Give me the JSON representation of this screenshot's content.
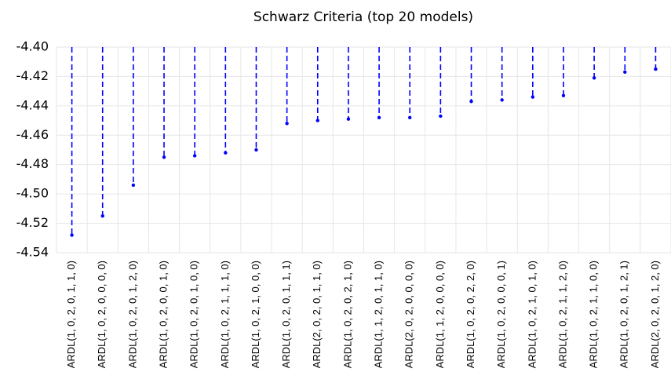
{
  "chart_data": {
    "type": "dropline",
    "title": "Schwarz Criteria (top 20 models)",
    "categories": [
      "ARDL(1, 0, 2, 0, 1, 1, 0)",
      "ARDL(1, 0, 2, 0, 0, 0, 0)",
      "ARDL(1, 0, 2, 0, 1, 2, 0)",
      "ARDL(1, 0, 2, 0, 0, 1, 0)",
      "ARDL(1, 0, 2, 0, 1, 0, 0)",
      "ARDL(1, 0, 2, 1, 1, 1, 0)",
      "ARDL(1, 0, 2, 1, 0, 0, 0)",
      "ARDL(1, 0, 2, 0, 1, 1, 1)",
      "ARDL(2, 0, 2, 0, 1, 1, 0)",
      "ARDL(1, 0, 2, 0, 2, 1, 0)",
      "ARDL(1, 1, 2, 0, 1, 1, 0)",
      "ARDL(2, 0, 2, 0, 0, 0, 0)",
      "ARDL(1, 1, 2, 0, 0, 0, 0)",
      "ARDL(1, 0, 2, 0, 2, 2, 0)",
      "ARDL(1, 0, 2, 0, 0, 0, 1)",
      "ARDL(1, 0, 2, 1, 0, 1, 0)",
      "ARDL(1, 0, 2, 1, 1, 2, 0)",
      "ARDL(1, 0, 2, 1, 1, 0, 0)",
      "ARDL(1, 0, 2, 0, 1, 2, 1)",
      "ARDL(2, 0, 2, 0, 1, 2, 0)"
    ],
    "values": [
      -4.528,
      -4.515,
      -4.494,
      -4.475,
      -4.474,
      -4.472,
      -4.47,
      -4.452,
      -4.45,
      -4.449,
      -4.448,
      -4.448,
      -4.447,
      -4.437,
      -4.436,
      -4.434,
      -4.433,
      -4.421,
      -4.417,
      -4.415
    ],
    "color": "#0000ff",
    "ylim": [
      -4.54,
      -4.4
    ],
    "yticks": [
      {
        "value": -4.54,
        "label": "-4.54"
      },
      {
        "value": -4.52,
        "label": "-4.52"
      },
      {
        "value": -4.5,
        "label": "-4.50"
      },
      {
        "value": -4.48,
        "label": "-4.48"
      },
      {
        "value": -4.46,
        "label": "-4.46"
      },
      {
        "value": -4.44,
        "label": "-4.44"
      },
      {
        "value": -4.42,
        "label": "-4.42"
      },
      {
        "value": -4.4,
        "label": "-4.40"
      }
    ],
    "grid": true
  }
}
